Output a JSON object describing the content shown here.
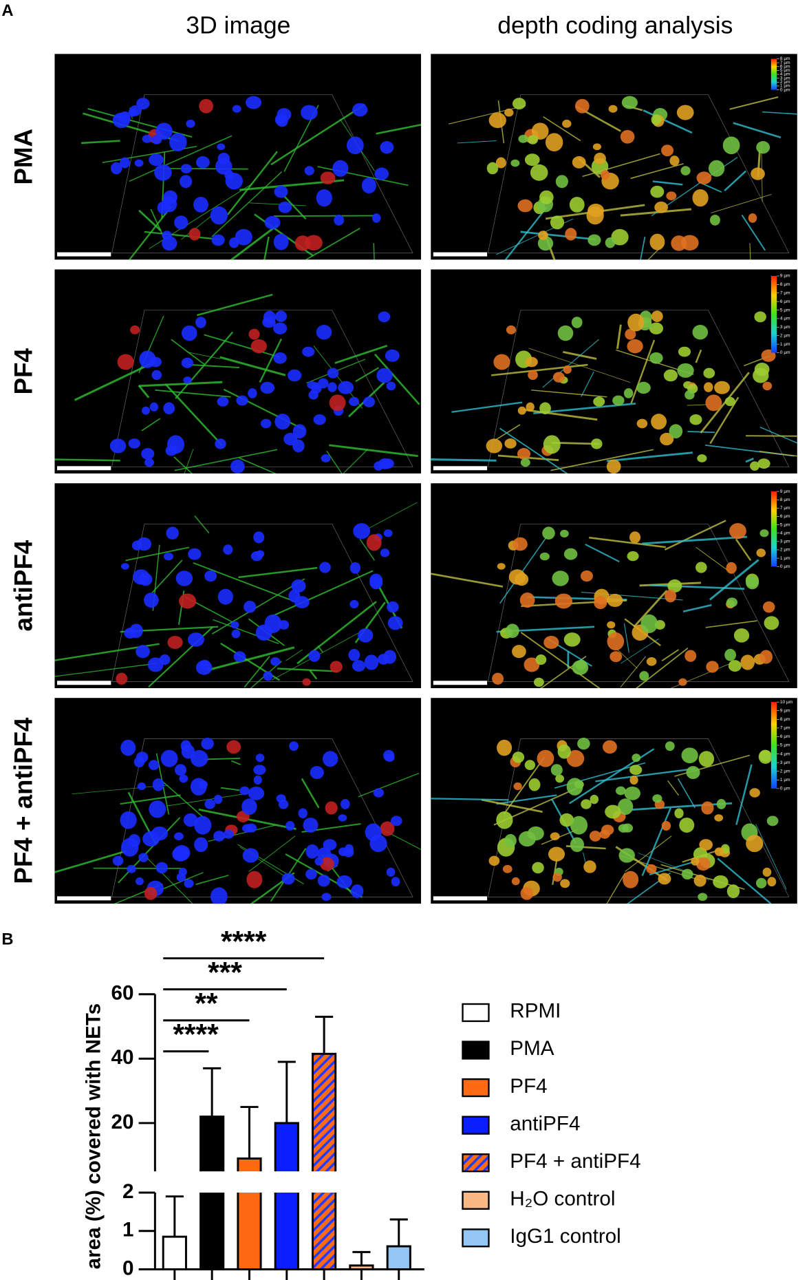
{
  "panel_a": {
    "label": "A",
    "columns": [
      "3D image",
      "depth coding analysis"
    ],
    "rows": [
      {
        "label": "PMA",
        "colorbar": [
          "8 µm",
          "7 µm",
          "6 µm",
          "5 µm",
          "4 µm",
          "3 µm",
          "2 µm",
          "1 µm",
          "0 µm"
        ]
      },
      {
        "label": "PF4",
        "colorbar": [
          "9 µm",
          "8 µm",
          "7 µm",
          "6 µm",
          "5 µm",
          "4 µm",
          "3 µm",
          "2 µm",
          "1 µm",
          "0 µm"
        ]
      },
      {
        "label": "antiPF4",
        "colorbar": [
          "9 µm",
          "8 µm",
          "7 µm",
          "6 µm",
          "5 µm",
          "4 µm",
          "3 µm",
          "2 µm",
          "1 µm",
          "0 µm"
        ]
      },
      {
        "label": "PF4 + antiPF4",
        "colorbar": [
          "10 µm",
          "9 µm",
          "8 µm",
          "7 µm",
          "6 µm",
          "5 µm",
          "4 µm",
          "3 µm",
          "2 µm",
          "1 µm",
          "0 µm"
        ]
      }
    ]
  },
  "chart_data": {
    "type": "bar",
    "panel_label": "B",
    "ylabel": "area (%) covered with NETs",
    "categories": [
      "RPMI",
      "PMA",
      "PF4",
      "antiPF4",
      "PF4 + antiPF4",
      "H₂O control",
      "IgG1 control"
    ],
    "values": [
      0.85,
      22,
      9,
      20,
      41.5,
      0.1,
      0.6
    ],
    "errors": [
      1.05,
      15,
      16,
      19,
      11.5,
      0.35,
      0.7
    ],
    "colors": [
      "#ffffff",
      "#000000",
      "#ff6a13",
      "#0a1eff",
      "#ff6a13",
      "#f8b784",
      "#93c5f5"
    ],
    "hatch": [
      false,
      false,
      false,
      false,
      true,
      false,
      false
    ],
    "hatch_color": "#1f3cff",
    "axis_segments": [
      {
        "ylim": [
          0,
          2
        ],
        "yticks": [
          0,
          1,
          2
        ]
      },
      {
        "ylim": [
          5,
          60
        ],
        "yticks": [
          20,
          40,
          60
        ]
      }
    ],
    "comparisons": [
      {
        "from": 0,
        "to": 1,
        "label": "****"
      },
      {
        "from": 0,
        "to": 2,
        "label": "**"
      },
      {
        "from": 0,
        "to": 3,
        "label": "***"
      },
      {
        "from": 0,
        "to": 4,
        "label": "****"
      }
    ]
  }
}
